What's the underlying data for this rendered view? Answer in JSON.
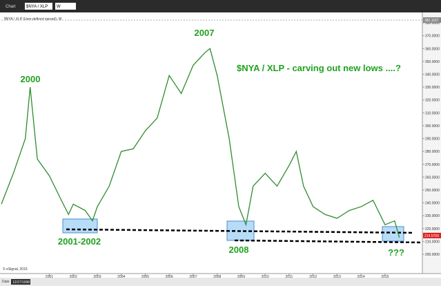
{
  "toolbar": {
    "window": "Chart",
    "symbol": "$NYA / XLP",
    "interval": "W"
  },
  "chart_data": {
    "type": "line",
    "subtitle": "$NYA / XLP (User-defined spread), W",
    "annotations": [
      "2000",
      "2007",
      "$NYA / XLP - carving out new lows ....?",
      "2001-2002",
      "2008",
      "???"
    ],
    "x": [
      1999.0,
      1999.5,
      2000.0,
      2000.2,
      2000.5,
      2001.0,
      2001.5,
      2001.8,
      2002.0,
      2002.5,
      2002.8,
      2003.0,
      2003.5,
      2004.0,
      2004.5,
      2005.0,
      2005.5,
      2006.0,
      2006.5,
      2007.0,
      2007.5,
      2007.7,
      2008.0,
      2008.5,
      2008.9,
      2009.2,
      2009.5,
      2010.0,
      2010.5,
      2011.0,
      2011.3,
      2011.6,
      2012.0,
      2012.5,
      2013.0,
      2013.5,
      2014.0,
      2014.5,
      2015.0,
      2015.4,
      2015.6
    ],
    "series": [
      {
        "name": "$NYA / XLP",
        "color": "#2e8b2e",
        "values": [
          239,
          263,
          290,
          330,
          274,
          261,
          242,
          231,
          239,
          234,
          226,
          237,
          253,
          280,
          282,
          296,
          306,
          339,
          325,
          347,
          357,
          360,
          339,
          290,
          237,
          223,
          253,
          263,
          253,
          269,
          280,
          253,
          237,
          231,
          228,
          234,
          237,
          242,
          223,
          226,
          213
        ]
      }
    ],
    "last_price": 214.5769,
    "high_price": 382.1157,
    "xlim": [
      1999,
      2016.5
    ],
    "ylim": [
      185,
      387
    ],
    "xticks": [
      2001,
      2002,
      2003,
      2004,
      2005,
      2006,
      2007,
      2008,
      2009,
      2010,
      2011,
      2012,
      2013,
      2014,
      2015
    ],
    "yticks": [
      {
        "value": 200,
        "label": "200.0000"
      },
      {
        "value": 210,
        "label": "210.0000"
      },
      {
        "value": 220,
        "label": "220.0000"
      },
      {
        "value": 230,
        "label": "230.0000"
      },
      {
        "value": 240,
        "label": "240.0000"
      },
      {
        "value": 250,
        "label": "250.0000"
      },
      {
        "value": 260,
        "label": "260.0000"
      },
      {
        "value": 270,
        "label": "270.0000"
      },
      {
        "value": 280,
        "label": "280.0000"
      },
      {
        "value": 290,
        "label": "290.0000"
      },
      {
        "value": 300,
        "label": "300.0000"
      },
      {
        "value": 310,
        "label": "310.0000"
      },
      {
        "value": 320,
        "label": "320.0000"
      },
      {
        "value": 330,
        "label": "330.0000"
      },
      {
        "value": 340,
        "label": "340.0000"
      },
      {
        "value": 350,
        "label": "350.0000"
      },
      {
        "value": 360,
        "label": "360.0000"
      },
      {
        "value": 370,
        "label": "370.0000"
      },
      {
        "value": 380,
        "label": "380.0000"
      }
    ],
    "grid": false
  },
  "footer": {
    "date_label": "Date",
    "date": "12/27/1998",
    "copyright": "© eSignal, 2015"
  }
}
